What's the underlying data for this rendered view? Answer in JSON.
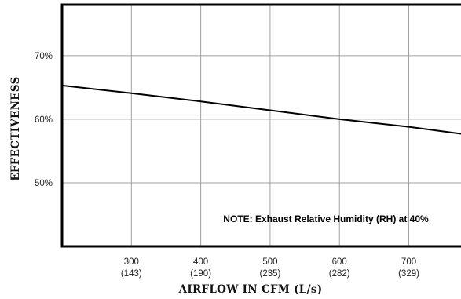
{
  "chart_data": {
    "type": "line",
    "title": "",
    "xlabel": "AIRFLOW IN CFM (L/s)",
    "ylabel": "EFFECTIVENESS",
    "xlim": [
      200,
      790
    ],
    "ylim": [
      40,
      78
    ],
    "x_ticks": [
      {
        "value": 300,
        "label": "300",
        "sublabel": "(143)"
      },
      {
        "value": 400,
        "label": "400",
        "sublabel": "(190)"
      },
      {
        "value": 500,
        "label": "500",
        "sublabel": "(235)"
      },
      {
        "value": 600,
        "label": "600",
        "sublabel": "(282)"
      },
      {
        "value": 700,
        "label": "700",
        "sublabel": "(329)"
      }
    ],
    "y_ticks": [
      {
        "value": 50,
        "label": "50%"
      },
      {
        "value": 60,
        "label": "60%"
      },
      {
        "value": 70,
        "label": "70%"
      }
    ],
    "grid": true,
    "series": [
      {
        "x": [
          200,
          300,
          400,
          500,
          600,
          700,
          790
        ],
        "y": [
          65.3,
          64.1,
          62.8,
          61.4,
          60.0,
          58.8,
          57.5
        ]
      }
    ],
    "annotation": "NOTE: Exhaust Relative Humidity (RH) at 40%",
    "line_color": "#000000",
    "grid_color": "#a0a0a0"
  }
}
